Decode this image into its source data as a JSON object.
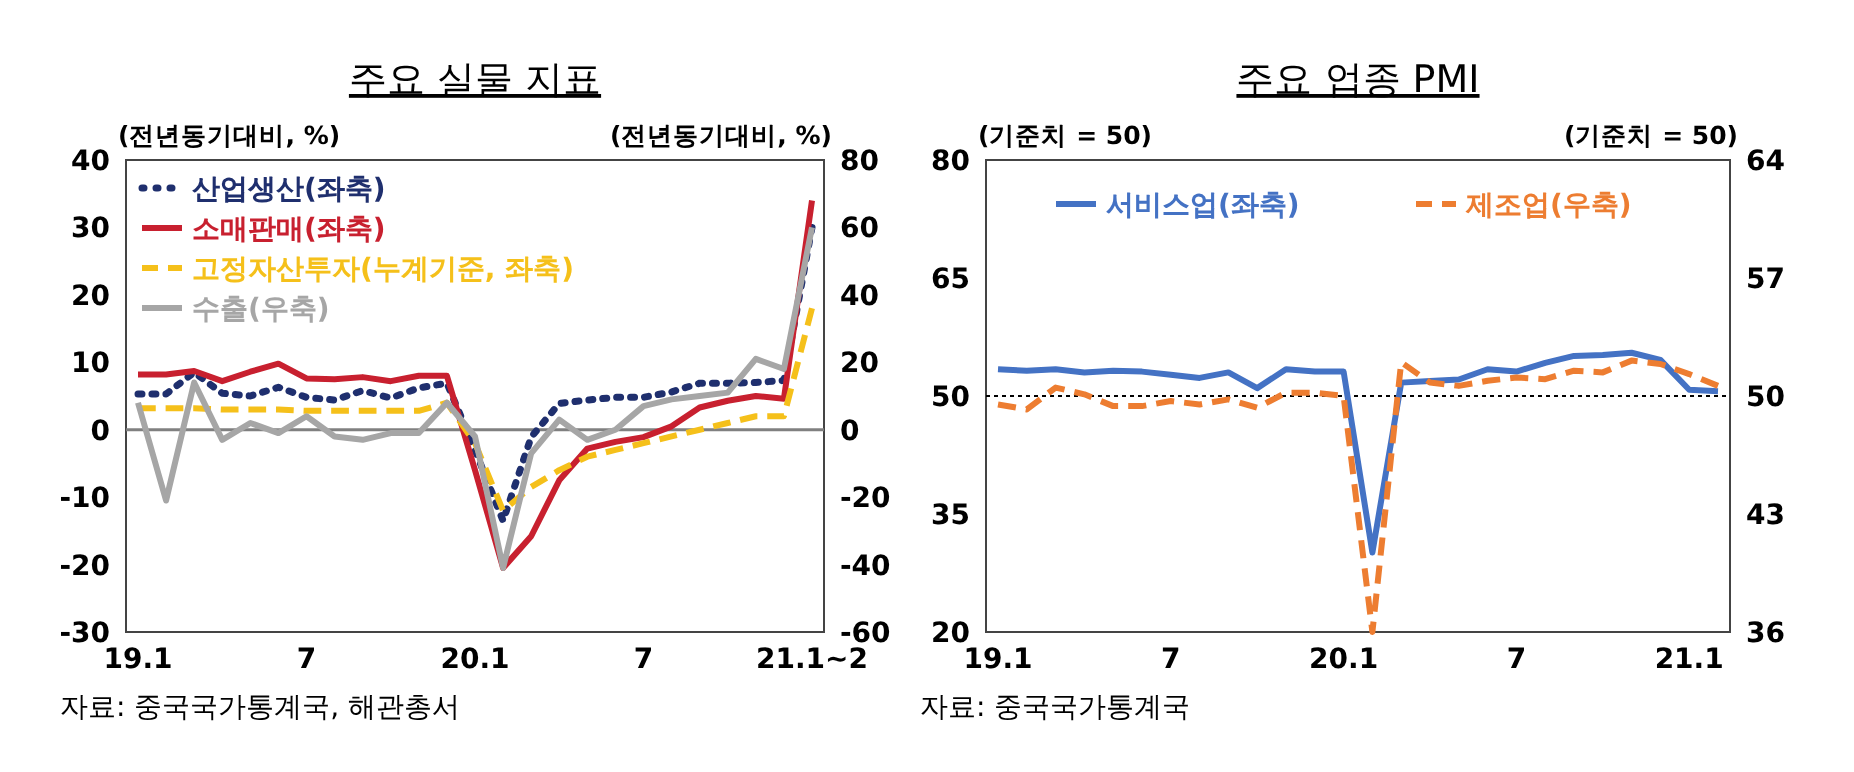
{
  "chart_data": [
    {
      "type": "line",
      "title": "주요 실물 지표",
      "ylabel": "(전년동기대비, %)",
      "y2label": "(전년동기대비, %)",
      "categories": [
        "19.1",
        null,
        null,
        null,
        null,
        null,
        "7",
        null,
        null,
        null,
        null,
        null,
        "20.1",
        null,
        null,
        null,
        null,
        null,
        "7",
        null,
        null,
        null,
        null,
        null,
        "21.1~2"
      ],
      "ylim": [
        -30,
        40
      ],
      "yticks": [
        -30,
        -20,
        -10,
        0,
        10,
        20,
        30,
        40
      ],
      "y2lim": [
        -60,
        80
      ],
      "y2ticks": [
        -60,
        -40,
        -20,
        0,
        20,
        40,
        60,
        80
      ],
      "legend": "top left",
      "ref_lines": [
        {
          "axis": "y",
          "value": 0,
          "color": "#808080",
          "line_style": "solid"
        }
      ],
      "series": [
        {
          "name": "산업생산(좌축)",
          "color": "#1f2f6e",
          "line_style": "dotted",
          "values": [
            5.3,
            5.3,
            8.5,
            5.4,
            5.0,
            6.3,
            4.8,
            4.4,
            5.8,
            4.7,
            6.2,
            6.9,
            -3,
            -13.5,
            -1.1,
            3.9,
            4.4,
            4.8,
            4.8,
            5.6,
            6.9,
            6.9,
            7.0,
            7.3,
            30
          ]
        },
        {
          "name": "소매판매(좌축)",
          "color": "#c8202f",
          "line_style": "solid",
          "values": [
            8.2,
            8.2,
            8.7,
            7.2,
            8.6,
            9.8,
            7.6,
            7.5,
            7.8,
            7.2,
            8.0,
            8.0,
            -6,
            -20.5,
            -15.8,
            -7.5,
            -2.8,
            -1.8,
            -1.1,
            0.5,
            3.3,
            4.3,
            5.0,
            4.6,
            34
          ]
        },
        {
          "name": "고정자산투자(누계기준, 좌축)",
          "color": "#f5c01a",
          "line_style": "dashed",
          "values": [
            3.2,
            3.2,
            3.2,
            3.0,
            3.0,
            3.0,
            2.8,
            2.8,
            2.8,
            2.8,
            2.8,
            4,
            -2,
            -12,
            -8.5,
            -6,
            -4,
            -3,
            -2,
            -1,
            0,
            1,
            2,
            2,
            18
          ]
        },
        {
          "name": "수출(우축)",
          "color": "#a6a6a6",
          "line_style": "solid",
          "axis": "y2",
          "values": [
            8,
            -21,
            14,
            -3,
            2,
            -1,
            4,
            -2,
            -3,
            -1,
            -1,
            8,
            -2,
            -41,
            -7,
            3,
            -3,
            0,
            7,
            9,
            10,
            11,
            21,
            18,
            60
          ]
        }
      ],
      "annotations": [
        "자료: 중국국가통계국, 해관총서"
      ]
    },
    {
      "type": "line",
      "title": "주요 업종 PMI",
      "ylabel": "(기준치 = 50)",
      "y2label": "(기준치 = 50)",
      "categories": [
        "19.1",
        null,
        null,
        null,
        null,
        null,
        "7",
        null,
        null,
        null,
        null,
        null,
        "20.1",
        null,
        null,
        null,
        null,
        null,
        "7",
        null,
        null,
        null,
        null,
        null,
        "21.1",
        null
      ],
      "ylim": [
        20,
        80
      ],
      "yticks": [
        20,
        35,
        50,
        65,
        80
      ],
      "y2lim": [
        36,
        64
      ],
      "y2ticks": [
        36,
        43,
        50,
        57,
        64
      ],
      "legend": "top",
      "ref_lines": [
        {
          "axis": "y",
          "value": 50,
          "color": "#000000",
          "line_style": "dotted"
        }
      ],
      "series": [
        {
          "name": "서비스업(좌축)",
          "color": "#4472c4",
          "line_style": "solid",
          "values": [
            53.4,
            53.2,
            53.4,
            53.0,
            53.2,
            53.1,
            52.7,
            52.3,
            53.0,
            51.0,
            53.4,
            53.1,
            53.1,
            30.1,
            51.7,
            51.9,
            52.1,
            53.4,
            53.1,
            54.2,
            55.1,
            55.2,
            55.5,
            54.6,
            50.8,
            50.6
          ]
        },
        {
          "name": "제조업(우축)",
          "color": "#ed7d31",
          "line_style": "dashed",
          "axis": "y2",
          "values": [
            49.5,
            49.2,
            50.5,
            50.1,
            49.4,
            49.4,
            49.7,
            49.5,
            49.8,
            49.3,
            50.2,
            50.2,
            50.0,
            36.0,
            52.0,
            50.8,
            50.6,
            50.9,
            51.1,
            51.0,
            51.5,
            51.4,
            52.1,
            51.9,
            51.3,
            50.6
          ]
        }
      ],
      "annotations": [
        "자료: 중국국가통계국"
      ]
    }
  ]
}
